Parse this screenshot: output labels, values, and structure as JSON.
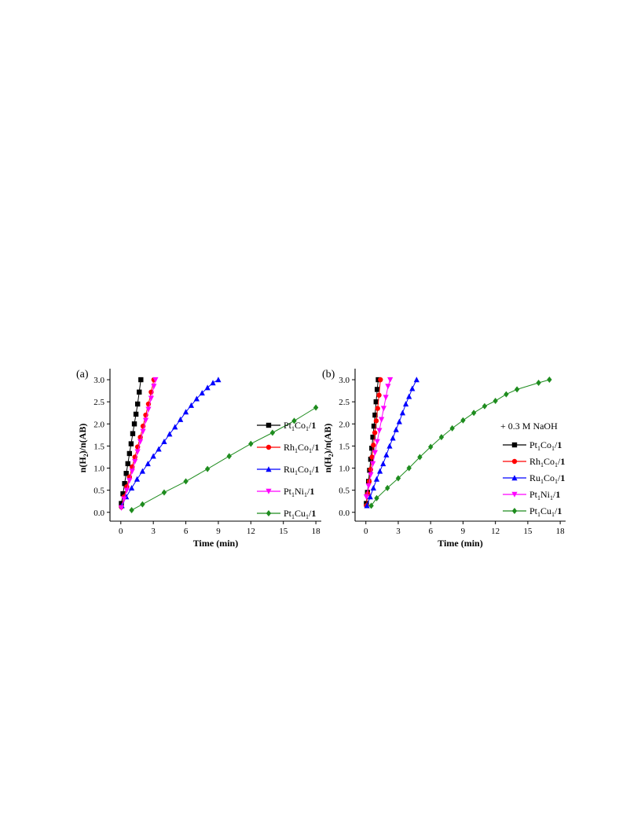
{
  "chart_data": [
    {
      "panel_label": "(a)",
      "type": "line",
      "xlabel": "Time (min)",
      "ylabel": "n(H2)/n(AB)",
      "xlim": [
        -1,
        18.5
      ],
      "ylim": [
        -0.2,
        3.25
      ],
      "xticks": [
        0,
        3,
        6,
        9,
        12,
        15,
        18
      ],
      "yticks": [
        0.0,
        0.5,
        1.0,
        1.5,
        2.0,
        2.5,
        3.0
      ],
      "grid": false,
      "legend_position": "right",
      "annotation": "",
      "series": [
        {
          "name": "Pt1Co1/1",
          "color": "#000000",
          "marker": "square",
          "x": [
            0.05,
            0.2,
            0.35,
            0.5,
            0.65,
            0.8,
            0.95,
            1.1,
            1.25,
            1.4,
            1.55,
            1.7,
            1.85
          ],
          "y": [
            0.2,
            0.42,
            0.65,
            0.88,
            1.1,
            1.33,
            1.55,
            1.78,
            2.0,
            2.22,
            2.45,
            2.72,
            3.0
          ]
        },
        {
          "name": "Rh1Co1/1",
          "color": "#ff0000",
          "marker": "circle",
          "x": [
            0.05,
            0.3,
            0.55,
            0.8,
            1.05,
            1.3,
            1.55,
            1.8,
            2.05,
            2.3,
            2.55,
            2.8,
            3.05
          ],
          "y": [
            0.12,
            0.35,
            0.58,
            0.8,
            1.03,
            1.25,
            1.48,
            1.7,
            1.95,
            2.2,
            2.45,
            2.72,
            3.0
          ]
        },
        {
          "name": "Ru1Co1/1",
          "color": "#0000ff",
          "marker": "triangle-up",
          "x": [
            0.1,
            0.5,
            1.0,
            1.5,
            2.0,
            2.5,
            3.0,
            3.5,
            4.0,
            4.5,
            5.0,
            5.5,
            6.0,
            6.5,
            7.0,
            7.5,
            8.0,
            8.5,
            9.0
          ],
          "y": [
            0.15,
            0.35,
            0.55,
            0.75,
            0.93,
            1.1,
            1.27,
            1.43,
            1.6,
            1.77,
            1.93,
            2.1,
            2.27,
            2.42,
            2.57,
            2.7,
            2.82,
            2.93,
            3.0
          ]
        },
        {
          "name": "Pt1Ni1/1",
          "color": "#ff00ff",
          "marker": "triangle-down",
          "x": [
            0.05,
            0.3,
            0.55,
            0.8,
            1.05,
            1.3,
            1.55,
            1.8,
            2.05,
            2.3,
            2.55,
            2.8,
            3.05,
            3.2
          ],
          "y": [
            0.1,
            0.3,
            0.5,
            0.72,
            0.93,
            1.15,
            1.37,
            1.6,
            1.83,
            2.08,
            2.33,
            2.58,
            2.85,
            3.0
          ]
        },
        {
          "name": "Pt1Cu1/1",
          "color": "#1e8c1e",
          "marker": "diamond",
          "x": [
            1.0,
            2.0,
            4.0,
            6.0,
            8.0,
            10.0,
            12.0,
            14.0,
            16.0,
            18.0
          ],
          "y": [
            0.05,
            0.18,
            0.45,
            0.7,
            0.98,
            1.27,
            1.55,
            1.8,
            2.07,
            2.37
          ]
        }
      ]
    },
    {
      "panel_label": "(b)",
      "type": "line",
      "xlabel": "Time (min)",
      "ylabel": "n(H2)/n(AB)",
      "xlim": [
        -1,
        18.5
      ],
      "ylim": [
        -0.2,
        3.25
      ],
      "xticks": [
        0,
        3,
        6,
        9,
        12,
        15,
        18
      ],
      "yticks": [
        0.0,
        0.5,
        1.0,
        1.5,
        2.0,
        2.5,
        3.0
      ],
      "grid": false,
      "legend_position": "right",
      "annotation": "+ 0.3 M NaOH",
      "series": [
        {
          "name": "Pt1Co1/1",
          "color": "#000000",
          "marker": "square",
          "x": [
            0.05,
            0.15,
            0.25,
            0.35,
            0.45,
            0.55,
            0.65,
            0.75,
            0.85,
            0.95,
            1.05,
            1.15
          ],
          "y": [
            0.2,
            0.45,
            0.7,
            0.95,
            1.2,
            1.45,
            1.7,
            1.95,
            2.2,
            2.5,
            2.78,
            3.0
          ]
        },
        {
          "name": "Rh1Co1/1",
          "color": "#ff0000",
          "marker": "circle",
          "x": [
            0.05,
            0.18,
            0.31,
            0.44,
            0.57,
            0.7,
            0.83,
            0.96,
            1.09,
            1.22,
            1.35
          ],
          "y": [
            0.15,
            0.42,
            0.7,
            0.97,
            1.25,
            1.52,
            1.8,
            2.07,
            2.35,
            2.65,
            3.0
          ]
        },
        {
          "name": "Ru1Co1/1",
          "color": "#0000ff",
          "marker": "triangle-up",
          "x": [
            0.1,
            0.4,
            0.7,
            1.0,
            1.3,
            1.6,
            1.9,
            2.2,
            2.5,
            2.8,
            3.1,
            3.4,
            3.7,
            4.0,
            4.3,
            4.7
          ],
          "y": [
            0.15,
            0.35,
            0.55,
            0.75,
            0.93,
            1.1,
            1.3,
            1.5,
            1.68,
            1.87,
            2.05,
            2.25,
            2.45,
            2.62,
            2.8,
            3.0
          ]
        },
        {
          "name": "Pt1Ni1/1",
          "color": "#ff00ff",
          "marker": "triangle-down",
          "x": [
            0.05,
            0.25,
            0.45,
            0.65,
            0.85,
            1.05,
            1.25,
            1.45,
            1.65,
            1.85,
            2.05,
            2.25
          ],
          "y": [
            0.35,
            0.6,
            0.85,
            1.1,
            1.35,
            1.6,
            1.85,
            2.1,
            2.35,
            2.6,
            2.85,
            3.0
          ]
        },
        {
          "name": "Pt1Cu1/1",
          "color": "#1e8c1e",
          "marker": "diamond",
          "x": [
            0.5,
            1.0,
            2.0,
            3.0,
            4.0,
            5.0,
            6.0,
            7.0,
            8.0,
            9.0,
            10.0,
            11.0,
            12.0,
            13.0,
            14.0,
            16.0,
            17.0
          ],
          "y": [
            0.15,
            0.32,
            0.55,
            0.77,
            1.0,
            1.25,
            1.48,
            1.7,
            1.9,
            2.08,
            2.25,
            2.4,
            2.52,
            2.67,
            2.78,
            2.93,
            3.0
          ]
        }
      ]
    }
  ],
  "legend_labels": [
    {
      "el1": "Pt",
      "s1": "1",
      "el2": "Co",
      "s2": "1",
      "suffix": "/",
      "bold": "1"
    },
    {
      "el1": "Rh",
      "s1": "1",
      "el2": "Co",
      "s2": "1",
      "suffix": "/",
      "bold": "1"
    },
    {
      "el1": "Ru",
      "s1": "1",
      "el2": "Co",
      "s2": "1",
      "suffix": "/",
      "bold": "1"
    },
    {
      "el1": "Pt",
      "s1": "1",
      "el2": "Ni",
      "s2": "1",
      "suffix": "/",
      "bold": "1"
    },
    {
      "el1": "Pt",
      "s1": "1",
      "el2": "Cu",
      "s2": "1",
      "suffix": "/",
      "bold": "1"
    }
  ],
  "ylabel_parts": {
    "a": "n(H",
    "sub": "2",
    "b": ")/n(AB)"
  }
}
